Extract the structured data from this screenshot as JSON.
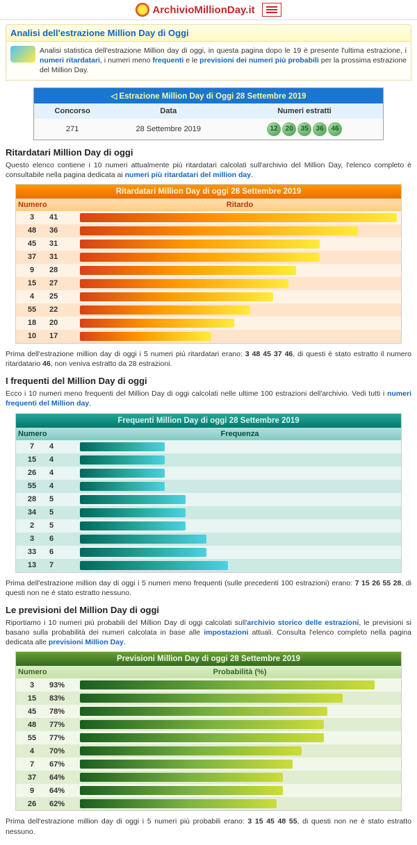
{
  "header": {
    "site_name": "ArchivioMillionDay.it"
  },
  "panel_title": "Analisi dell'estrazione Million Day di Oggi",
  "intro": {
    "pre": "Analisi statistica dell'estrazione Million day di oggi, in questa pagina dopo le 19 è presente l'ultima estrazione, i ",
    "link1": "numeri ritardatari",
    "mid1": ", i numeri meno ",
    "link2": "frequenti",
    "mid2": " e le ",
    "link3": "previsioni dei numeri più probabili",
    "post": " per la prossima estrazione del Million Day."
  },
  "extraction": {
    "title": "◁ Estrazione Million Day di Oggi 28 Settembre 2019",
    "h_concorso": "Concorso",
    "h_data": "Data",
    "h_numeri": "Numeri estratti",
    "concorso": "271",
    "data": "28 Settembre 2019",
    "numbers": [
      "12",
      "20",
      "35",
      "36",
      "46"
    ]
  },
  "ritardatari": {
    "heading": "Ritardatari Million Day di oggi",
    "desc1": "Questo elenco contiene i 10 numeri attualmente più ritardatari calcolati sull'archivio del Million Day, l'elenco completo è consultabile nella pagina dedicata ai ",
    "link": "numeri più ritardatari del million day",
    "title": "Ritardatari Million Day di oggi 28 Settembre 2019",
    "h_numero": "Numero",
    "h_valore": "Ritardo",
    "max": 41,
    "rows": [
      {
        "n": "3",
        "v": 41
      },
      {
        "n": "48",
        "v": 36
      },
      {
        "n": "45",
        "v": 31
      },
      {
        "n": "37",
        "v": 31
      },
      {
        "n": "9",
        "v": 28
      },
      {
        "n": "15",
        "v": 27
      },
      {
        "n": "4",
        "v": 25
      },
      {
        "n": "55",
        "v": 22
      },
      {
        "n": "18",
        "v": 20
      },
      {
        "n": "10",
        "v": 17
      }
    ],
    "note_pre": "Prima dell'estrazione million day di oggi i 5 numeri più ritardatari erano: ",
    "note_bold": "3 48 45 37 46",
    "note_post1": ", di questi è stato estratto il numero ritardatario ",
    "note_bold2": "46",
    "note_post2": ", non veniva estratto da 28 estrazioni."
  },
  "frequenti": {
    "heading": "I frequenti del Million Day di oggi",
    "desc1": "Ecco i 10 numeri meno frequenti del Million Day di oggi calcolati nelle ultime 100 estrazioni dell'archivio. Vedi tutti i ",
    "link": "numeri frequenti del Million day",
    "title": "Frequenti Million Day di oggi 28 Settembre 2019",
    "h_numero": "Numero",
    "h_valore": "Frequenza",
    "max": 15,
    "rows": [
      {
        "n": "7",
        "v": 4
      },
      {
        "n": "15",
        "v": 4
      },
      {
        "n": "26",
        "v": 4
      },
      {
        "n": "55",
        "v": 4
      },
      {
        "n": "28",
        "v": 5
      },
      {
        "n": "34",
        "v": 5
      },
      {
        "n": "2",
        "v": 5
      },
      {
        "n": "3",
        "v": 6
      },
      {
        "n": "33",
        "v": 6
      },
      {
        "n": "13",
        "v": 7
      }
    ],
    "note_pre": "Prima dell'estrazione million day di oggi i 5 numeri meno frequenti (sulle precedenti 100 estrazioni) erano: ",
    "note_bold": "7 15 26 55 28",
    "note_post": ", di questi non ne è stato estratto nessuno."
  },
  "previsioni": {
    "heading": "Le previsioni del Million Day di oggi",
    "desc1": "Riportiamo i 10 numeri più probabili del Million Day di oggi calcolati sull'",
    "link1": "archivio storico delle estrazioni",
    "desc2": ", le previsioni si basano sulla probabilità dei numeri calcolata in base alle ",
    "link2": "impostazioni",
    "desc3": " attuali. Consulta l'elenco completo nella pagina dedicata alle ",
    "link3": "previsioni Million Day",
    "title": "Previsioni Million Day di oggi 28 Settembre 2019",
    "h_numero": "Numero",
    "h_valore": "Probabilità (%)",
    "max": 100,
    "rows": [
      {
        "n": "3",
        "v": 93,
        "l": "93%"
      },
      {
        "n": "15",
        "v": 83,
        "l": "83%"
      },
      {
        "n": "45",
        "v": 78,
        "l": "78%"
      },
      {
        "n": "48",
        "v": 77,
        "l": "77%"
      },
      {
        "n": "55",
        "v": 77,
        "l": "77%"
      },
      {
        "n": "4",
        "v": 70,
        "l": "70%"
      },
      {
        "n": "7",
        "v": 67,
        "l": "67%"
      },
      {
        "n": "37",
        "v": 64,
        "l": "64%"
      },
      {
        "n": "9",
        "v": 64,
        "l": "64%"
      },
      {
        "n": "26",
        "v": 62,
        "l": "62%"
      }
    ],
    "note_pre": "Prima dell'estrazione million day di oggi i 5 numeri più probabili erano: ",
    "note_bold": "3 15 45 48 55",
    "note_post": ", di questi non ne è stato estratto nessuno."
  }
}
